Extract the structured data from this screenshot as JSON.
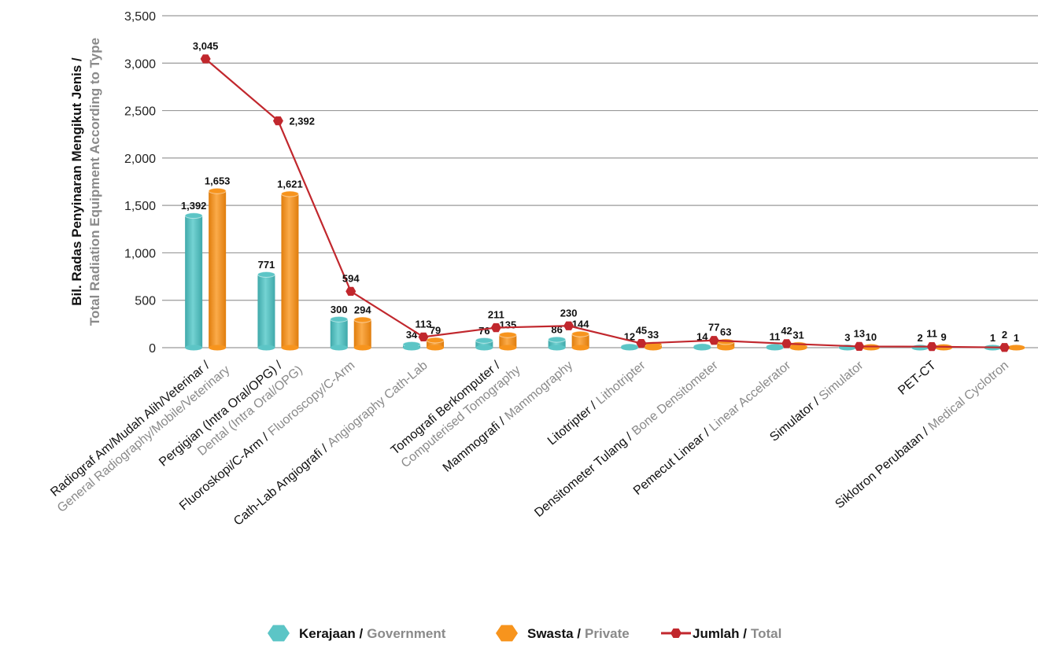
{
  "chart_data": {
    "type": "bar",
    "ylabel": [
      "Bil. Radas Penyinaran Mengikut Jenis /",
      "Total Radiation Equipment According to Type"
    ],
    "categories": [
      [
        "Radiograf Am/Mudah Alih/Veterinar /",
        "General Radiography/Mobile/Veterinary"
      ],
      [
        "Pergigian (Intra Oral/OPG) /",
        "Dental (Intra Oral/OPG)"
      ],
      [
        "Fluoroskopi/C-Arm /",
        "Fluoroscopy/C-Arm"
      ],
      [
        "Cath-Lab Angiografi /",
        "Angiography Cath-Lab"
      ],
      [
        "Tomografi Berkomputer /",
        "Computerised Tomography"
      ],
      [
        "Mammografi /",
        "Mammography"
      ],
      [
        "Litotripter /",
        "Lithotripter"
      ],
      [
        "Densitometer Tulang /",
        "Bone Densitometer"
      ],
      [
        "Pemecut Linear /",
        "Linear Accelerator"
      ],
      [
        "Simulator /",
        "Simulator"
      ],
      [
        "PET-CT"
      ],
      [
        "Siklotron Perubatan /",
        "Medical Cyclotron"
      ]
    ],
    "series": [
      {
        "name": [
          "Kerajaan /",
          "Government"
        ],
        "color": "#5cc5c6",
        "type": "bar",
        "values": [
          1392,
          771,
          300,
          34,
          76,
          86,
          12,
          14,
          11,
          3,
          2,
          1
        ],
        "value_labels": [
          "1,392",
          "771",
          "300",
          "34",
          "76",
          "86",
          "12",
          "14",
          "11",
          "3",
          "2",
          "1"
        ]
      },
      {
        "name": [
          "Swasta /",
          "Private"
        ],
        "color": "#f7941d",
        "type": "bar",
        "values": [
          1653,
          1621,
          294,
          79,
          135,
          144,
          33,
          63,
          31,
          10,
          9,
          1
        ],
        "value_labels": [
          "1,653",
          "1,621",
          "294",
          "79",
          "135",
          "144",
          "33",
          "63",
          "31",
          "10",
          "9",
          "1"
        ]
      },
      {
        "name": [
          "Jumlah /",
          "Total"
        ],
        "color": "#c1272d",
        "type": "line",
        "values": [
          3045,
          2392,
          594,
          113,
          211,
          230,
          45,
          77,
          42,
          13,
          11,
          2
        ],
        "value_labels": [
          "3,045",
          "2,392",
          "594",
          "113",
          "211",
          "230",
          "45",
          "77",
          "42",
          "13",
          "11",
          "2"
        ]
      }
    ],
    "ylim": [
      0,
      3500
    ],
    "yticks": [
      0,
      500,
      {
        "value": 1000,
        "label": "1,000"
      },
      {
        "value": 1500,
        "label": "1,500"
      },
      {
        "value": 2000,
        "label": "2,000"
      },
      {
        "value": 2500,
        "label": "2,500"
      },
      {
        "value": 3000,
        "label": "3,000"
      },
      {
        "value": 3500,
        "label": "3,500"
      }
    ],
    "grid": true
  }
}
